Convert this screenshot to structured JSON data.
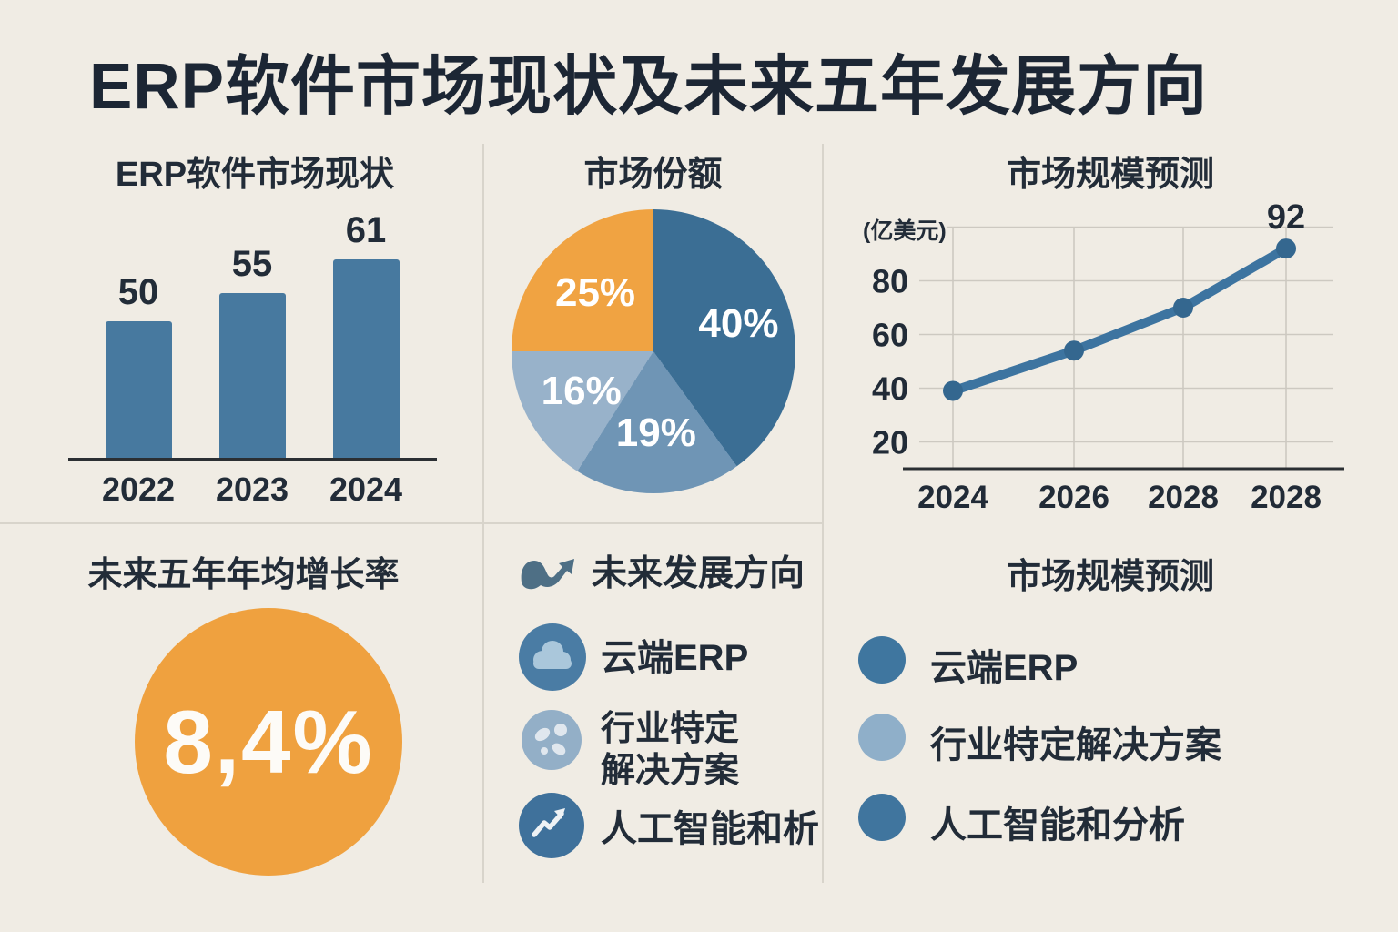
{
  "title": "ERP软件市场现状及未来五年发展方向",
  "colors": {
    "background": "#f0ece4",
    "text_dark": "#212b37",
    "divider": "#d8d4cb",
    "accent_blue": "#47799f",
    "accent_orange": "#efa13f"
  },
  "chart_data": [
    {
      "type": "bar",
      "title": "ERP软件市场现状",
      "categories": [
        "2022",
        "2023",
        "2024"
      ],
      "values": [
        50,
        55,
        61
      ],
      "bar_color": "#47799f",
      "grid": false,
      "legend_position": "none"
    },
    {
      "type": "pie",
      "title": "市场份额",
      "slices": [
        {
          "label": "40%",
          "value": 40,
          "color": "#3b6e94"
        },
        {
          "label": "19%",
          "value": 19,
          "color": "#6f95b5"
        },
        {
          "label": "16%",
          "value": 16,
          "color": "#98b2ca"
        },
        {
          "label": "25%",
          "value": 25,
          "color": "#f0a342"
        }
      ],
      "start_angle": "top",
      "direction": "clockwise",
      "legend_position": "none"
    },
    {
      "type": "line",
      "title": "市场规模预测",
      "unit_label": "(亿美元)",
      "x": [
        "2024",
        "2026",
        "2028",
        "2028"
      ],
      "values": [
        39,
        54,
        70,
        92
      ],
      "yticks": [
        20,
        40,
        60,
        80
      ],
      "ylim": [
        10,
        100
      ],
      "point_label": {
        "index": 3,
        "text": "92"
      },
      "line_color": "#3d74a0",
      "marker_color": "#34678f",
      "grid": true,
      "legend_position": "none"
    }
  ],
  "growth": {
    "title": "未来五年年均增长率",
    "value": "8,4%",
    "circle_color": "#efa13f"
  },
  "directions": {
    "title": "未来发展方向",
    "header_icon": "wave-arrow-icon",
    "items": [
      {
        "icon": "cloud-icon",
        "label": "云端ERP"
      },
      {
        "icon": "industry-icon",
        "label": "行业特定\n解决方案"
      },
      {
        "icon": "trend-arrow-icon",
        "label": "人工智能和析"
      }
    ]
  },
  "forecast_legend": {
    "title": "市场规模预测",
    "items": [
      {
        "label": "云端ERP",
        "color": "#3f769f"
      },
      {
        "label": "行业特定解决方案",
        "color": "#8fafc9"
      },
      {
        "label": "人工智能和分析",
        "color": "#40759e"
      }
    ]
  }
}
